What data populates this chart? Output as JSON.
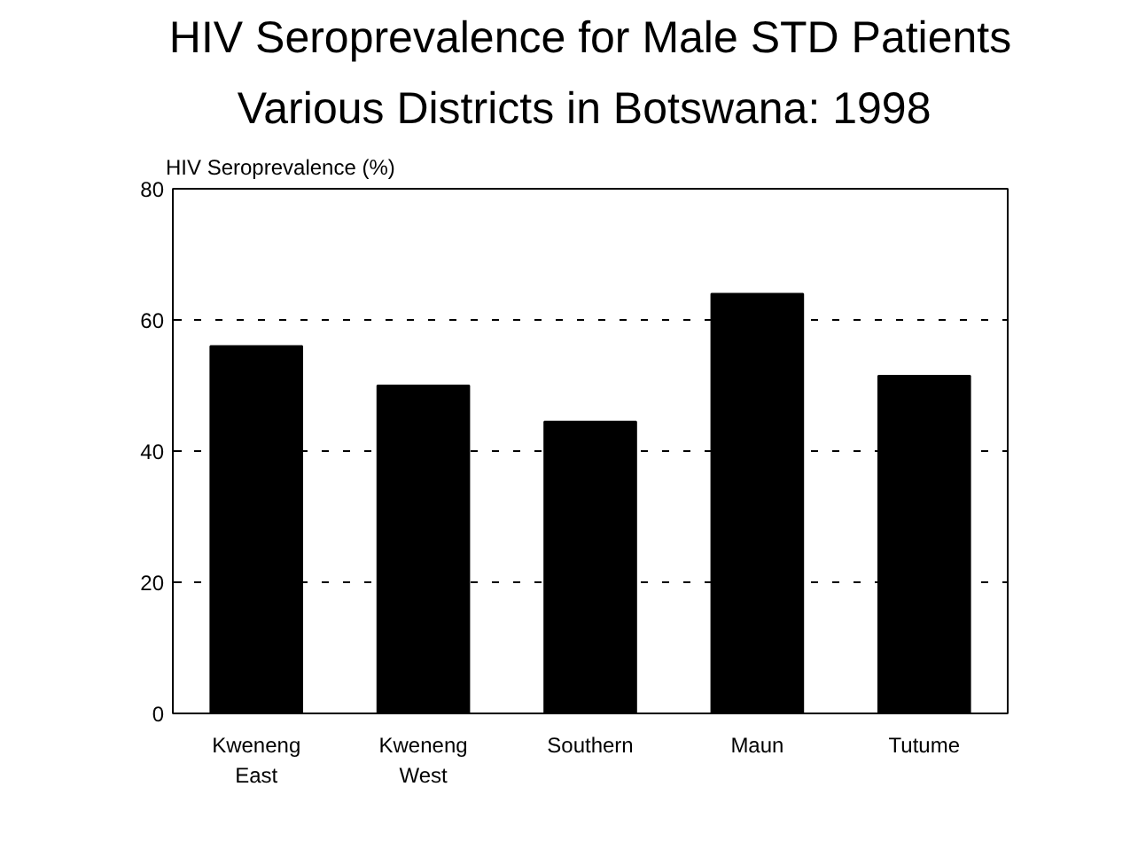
{
  "chart_data": {
    "type": "bar",
    "title": "HIV Seroprevalence for Male STD Patients",
    "subtitle": "Various Districts in Botswana:  1998",
    "ylabel": "HIV Seroprevalence (%)",
    "categories": [
      "Kweneng East",
      "Kweneng West",
      "Southern",
      "Maun",
      "Tutume"
    ],
    "values": [
      56,
      50,
      44.5,
      64,
      51.5
    ],
    "color": "#000000",
    "ylim": [
      0,
      80
    ],
    "yticks": [
      0,
      20,
      40,
      60,
      80
    ],
    "grid": "y"
  }
}
